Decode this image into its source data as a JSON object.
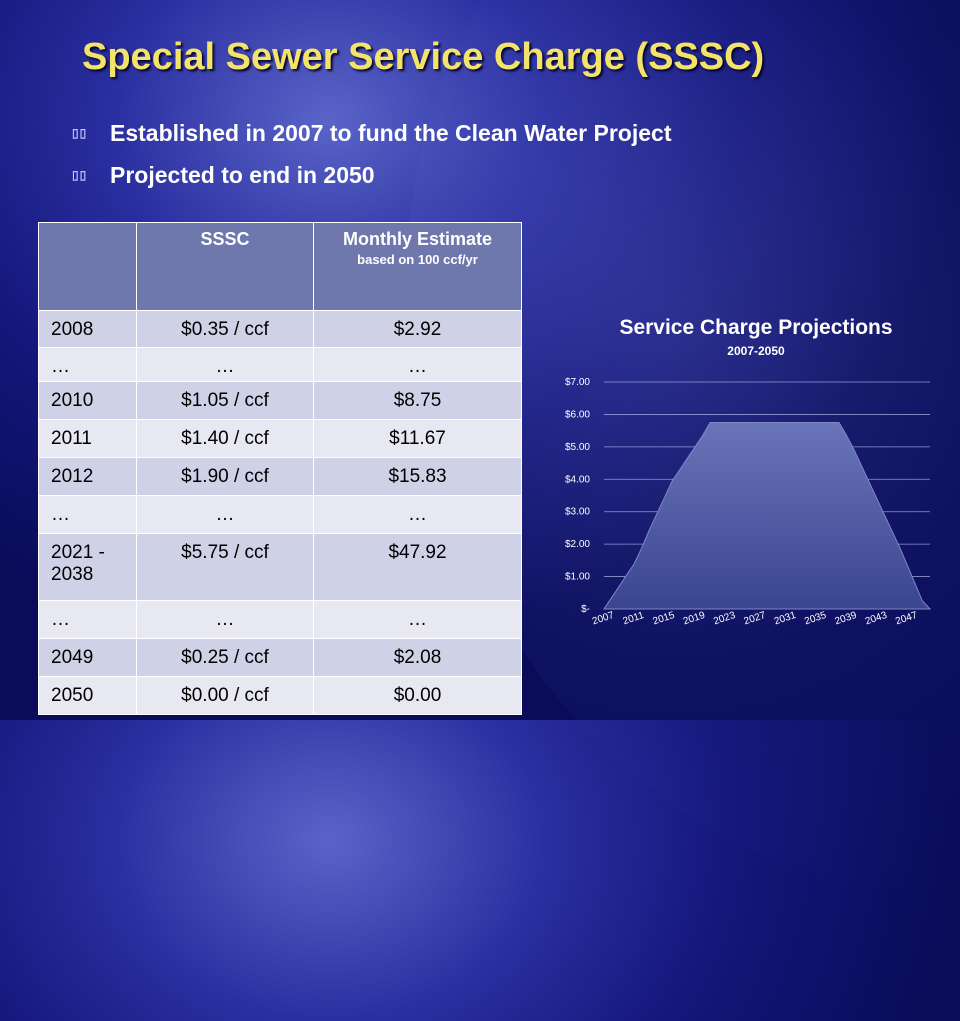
{
  "slide": {
    "title": "Special Sewer Service Charge (SSSC)",
    "bullets": [
      "Established in 2007 to fund the Clean Water Project",
      "Projected to end in 2050"
    ],
    "bullet_glyph": "▯▯"
  },
  "table": {
    "headers": {
      "col1": "",
      "col2": "SSSC",
      "col3": "Monthly Estimate",
      "col3_sub": "based on 100 ccf/yr"
    },
    "rows": [
      {
        "year": "2008",
        "sssc": "$0.35 / ccf",
        "monthly": "$2.92"
      },
      {
        "year": "…",
        "sssc": "…",
        "monthly": "…"
      },
      {
        "year": "2010",
        "sssc": "$1.05 / ccf",
        "monthly": "$8.75"
      },
      {
        "year": "2011",
        "sssc": "$1.40 / ccf",
        "monthly": "$11.67"
      },
      {
        "year": "2012",
        "sssc": "$1.90  / ccf",
        "monthly": "$15.83"
      },
      {
        "year": "…",
        "sssc": "…",
        "monthly": "…"
      },
      {
        "year": "2021 - 2038",
        "sssc": "$5.75 / ccf",
        "monthly": "$47.92"
      },
      {
        "year": "…",
        "sssc": "…",
        "monthly": "…"
      },
      {
        "year": "2049",
        "sssc": "$0.25 / ccf",
        "monthly": "$2.08"
      },
      {
        "year": "2050",
        "sssc": "$0.00 / ccf",
        "monthly": "$0.00"
      }
    ]
  },
  "chart_data": {
    "type": "area",
    "title": "Service Charge Projections",
    "subtitle": "2007-2050",
    "xlabel": "",
    "ylabel": "",
    "x_range": [
      2007,
      2050
    ],
    "x_ticks": [
      "2007",
      "2011",
      "2015",
      "2019",
      "2023",
      "2027",
      "2031",
      "2035",
      "2039",
      "2043",
      "2047"
    ],
    "y_ticks": [
      "$-",
      "$1.00",
      "$2.00",
      "$3.00",
      "$4.00",
      "$5.00",
      "$6.00",
      "$7.00"
    ],
    "ylim": [
      0,
      7
    ],
    "grid": true,
    "legend": "none",
    "fill_color": "#4a56a0",
    "points": [
      {
        "x": 2007,
        "y": 0.0
      },
      {
        "x": 2008,
        "y": 0.35
      },
      {
        "x": 2009,
        "y": 0.7
      },
      {
        "x": 2010,
        "y": 1.05
      },
      {
        "x": 2011,
        "y": 1.4
      },
      {
        "x": 2012,
        "y": 1.9
      },
      {
        "x": 2013,
        "y": 2.45
      },
      {
        "x": 2014,
        "y": 2.95
      },
      {
        "x": 2015,
        "y": 3.45
      },
      {
        "x": 2016,
        "y": 3.95
      },
      {
        "x": 2017,
        "y": 4.3
      },
      {
        "x": 2018,
        "y": 4.65
      },
      {
        "x": 2019,
        "y": 5.0
      },
      {
        "x": 2020,
        "y": 5.35
      },
      {
        "x": 2021,
        "y": 5.75
      },
      {
        "x": 2038,
        "y": 5.75
      },
      {
        "x": 2039,
        "y": 5.35
      },
      {
        "x": 2040,
        "y": 4.9
      },
      {
        "x": 2041,
        "y": 4.4
      },
      {
        "x": 2042,
        "y": 3.9
      },
      {
        "x": 2043,
        "y": 3.4
      },
      {
        "x": 2044,
        "y": 2.9
      },
      {
        "x": 2045,
        "y": 2.4
      },
      {
        "x": 2046,
        "y": 1.9
      },
      {
        "x": 2047,
        "y": 1.35
      },
      {
        "x": 2048,
        "y": 0.8
      },
      {
        "x": 2049,
        "y": 0.25
      },
      {
        "x": 2050,
        "y": 0.0
      }
    ]
  }
}
